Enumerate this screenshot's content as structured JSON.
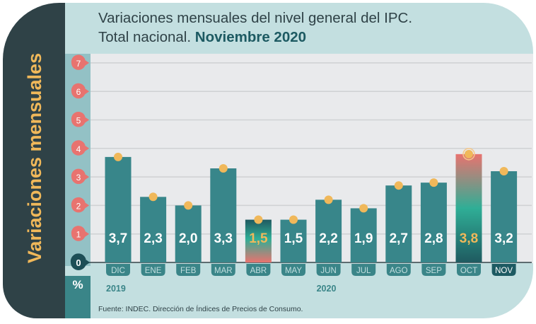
{
  "chart_data": {
    "type": "bar",
    "title_line1": "Variaciones mensuales del nivel general del IPC.",
    "title_line2_prefix": "Total nacional.",
    "title_line2_highlight": "Noviembre 2020",
    "ylabel": "Variaciones mensuales",
    "yunit": "%",
    "ylim": [
      0,
      7
    ],
    "yticks": [
      "0",
      "1",
      "2",
      "3",
      "4",
      "5",
      "6",
      "7"
    ],
    "grid": true,
    "categories": [
      "DIC",
      "ENE",
      "FEB",
      "MAR",
      "ABR",
      "MAY",
      "JUN",
      "JUL",
      "AGO",
      "SEP",
      "OCT",
      "NOV"
    ],
    "values": [
      3.7,
      2.3,
      2.0,
      3.3,
      1.5,
      1.5,
      2.2,
      1.9,
      2.7,
      2.8,
      3.8,
      3.2
    ],
    "value_labels": [
      "3,7",
      "2,3",
      "2,0",
      "3,3",
      "1,5",
      "1,5",
      "2,2",
      "1,9",
      "2,7",
      "2,8",
      "3,8",
      "3,2"
    ],
    "highlighted": [
      "ABR",
      "OCT"
    ],
    "year_labels": [
      {
        "text": "2019",
        "category": "DIC"
      },
      {
        "text": "2020",
        "category": "JUN"
      }
    ],
    "source": "Fuente: INDEC. Dirección de Índices de Precios de Consumo."
  },
  "colors": {
    "bar": "#38868a",
    "bar_label": "#ffffff",
    "highlight_label": "#f0b85a",
    "marker": "#f0b85a",
    "tick_bubble": "#e8736f",
    "zero_bubble": "#1d4e56",
    "side_label": "#f0b85a"
  }
}
